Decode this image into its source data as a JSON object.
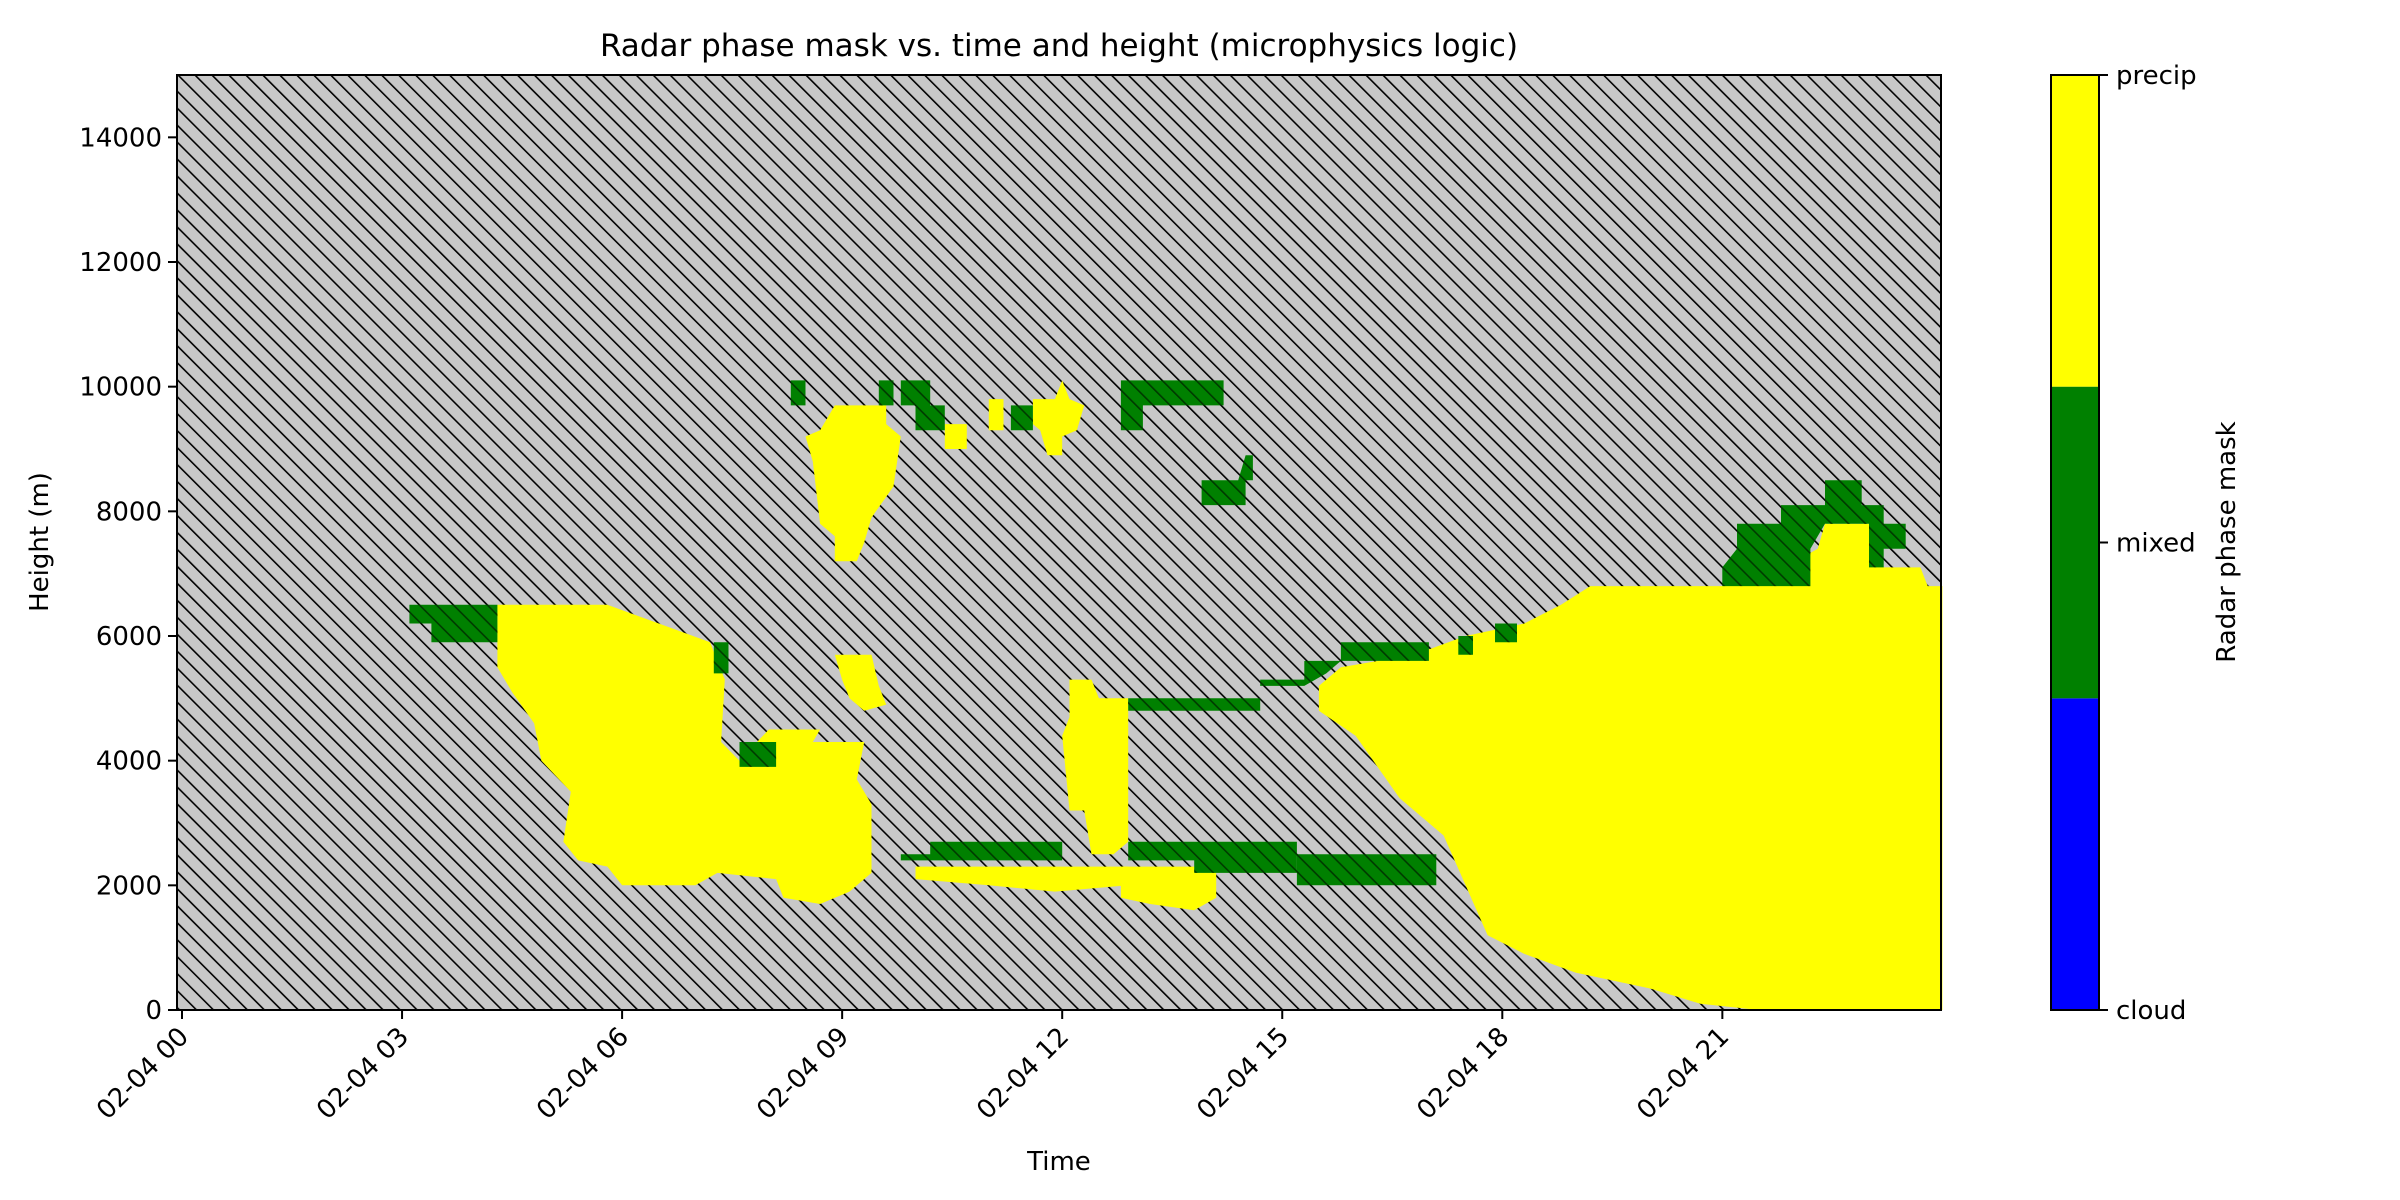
{
  "chart_data": {
    "type": "heatmap",
    "title": "Radar phase mask vs. time and height (microphysics logic)",
    "xlabel": "Time",
    "ylabel": "Height (m)",
    "x_range": [
      "02-04 00:00",
      "02-04 23:59"
    ],
    "x_ticks": [
      "02-04 00",
      "02-04 03",
      "02-04 06",
      "02-04 09",
      "02-04 12",
      "02-04 15",
      "02-04 18",
      "02-04 21"
    ],
    "ylim": [
      0,
      15000
    ],
    "y_ticks": [
      0,
      2000,
      4000,
      6000,
      8000,
      10000,
      12000,
      14000
    ],
    "background": "no data (hatched)",
    "colorbar": {
      "label": "Radar phase mask",
      "categories": [
        {
          "name": "cloud",
          "color": "#0000ff"
        },
        {
          "name": "mixed",
          "color": "#008000"
        },
        {
          "name": "precip",
          "color": "#ffff00"
        }
      ]
    },
    "regions": [
      {
        "category": "precip",
        "description": "main precipitation body 04:20-09:40",
        "polygon": [
          [
            4.3,
            6500
          ],
          [
            5.8,
            6500
          ],
          [
            6.5,
            6200
          ],
          [
            7.2,
            5900
          ],
          [
            7.4,
            5300
          ],
          [
            7.35,
            4300
          ],
          [
            7.6,
            4000
          ],
          [
            8.0,
            4500
          ],
          [
            8.7,
            4500
          ],
          [
            8.6,
            4300
          ],
          [
            9.3,
            4300
          ],
          [
            9.2,
            3700
          ],
          [
            9.4,
            3300
          ],
          [
            9.4,
            2200
          ],
          [
            9.1,
            1900
          ],
          [
            8.7,
            1700
          ],
          [
            8.2,
            1800
          ],
          [
            8.1,
            2100
          ],
          [
            7.3,
            2200
          ],
          [
            7.0,
            2000
          ],
          [
            6.0,
            2000
          ],
          [
            5.8,
            2300
          ],
          [
            5.4,
            2400
          ],
          [
            5.2,
            2700
          ],
          [
            5.3,
            3500
          ],
          [
            4.9,
            4000
          ],
          [
            4.8,
            4600
          ],
          [
            4.5,
            5100
          ],
          [
            4.3,
            5500
          ]
        ]
      },
      {
        "category": "precip",
        "description": "upper precipitation cell near 09:00",
        "polygon": [
          [
            8.9,
            9700
          ],
          [
            9.6,
            9700
          ],
          [
            9.6,
            9400
          ],
          [
            9.8,
            9200
          ],
          [
            9.7,
            8400
          ],
          [
            9.4,
            7900
          ],
          [
            9.3,
            7500
          ],
          [
            9.2,
            7200
          ],
          [
            8.9,
            7200
          ],
          [
            8.9,
            7600
          ],
          [
            8.7,
            7800
          ],
          [
            8.6,
            8800
          ],
          [
            8.5,
            9200
          ],
          [
            8.7,
            9300
          ]
        ]
      },
      {
        "category": "precip",
        "description": "small cell near 09:15",
        "polygon": [
          [
            8.9,
            5700
          ],
          [
            9.4,
            5700
          ],
          [
            9.5,
            5200
          ],
          [
            9.6,
            4900
          ],
          [
            9.3,
            4800
          ],
          [
            9.1,
            5000
          ],
          [
            9.0,
            5300
          ]
        ]
      },
      {
        "category": "precip",
        "description": "upper cells near 10:30-12:00",
        "polygon": [
          [
            10.4,
            9400
          ],
          [
            10.7,
            9400
          ],
          [
            10.7,
            9000
          ],
          [
            10.4,
            9000
          ]
        ]
      },
      {
        "category": "precip",
        "description": "upper cells near 11:00",
        "polygon": [
          [
            11.0,
            9800
          ],
          [
            11.2,
            9800
          ],
          [
            11.2,
            9300
          ],
          [
            11.0,
            9300
          ]
        ]
      },
      {
        "category": "precip",
        "description": "upper cells near 11:45",
        "polygon": [
          [
            11.6,
            9800
          ],
          [
            11.9,
            9800
          ],
          [
            12.0,
            10100
          ],
          [
            12.1,
            9800
          ],
          [
            12.3,
            9700
          ],
          [
            12.2,
            9300
          ],
          [
            12.0,
            9200
          ],
          [
            12.0,
            8900
          ],
          [
            11.8,
            8900
          ],
          [
            11.7,
            9300
          ],
          [
            11.6,
            9400
          ]
        ]
      },
      {
        "category": "precip",
        "description": "low band 09:50-12:50",
        "polygon": [
          [
            10.0,
            2300
          ],
          [
            12.9,
            2300
          ],
          [
            12.9,
            2000
          ],
          [
            11.9,
            1900
          ],
          [
            11.0,
            2000
          ],
          [
            10.0,
            2100
          ]
        ]
      },
      {
        "category": "precip",
        "description": "column near 12:20",
        "polygon": [
          [
            12.1,
            5300
          ],
          [
            12.4,
            5300
          ],
          [
            12.5,
            5000
          ],
          [
            12.9,
            5000
          ],
          [
            12.9,
            2700
          ],
          [
            12.7,
            2500
          ],
          [
            12.4,
            2500
          ],
          [
            12.3,
            3200
          ],
          [
            12.1,
            3200
          ],
          [
            12.0,
            4400
          ],
          [
            12.1,
            4700
          ]
        ]
      },
      {
        "category": "precip",
        "description": "low patch near 13:30",
        "polygon": [
          [
            12.8,
            2300
          ],
          [
            14.1,
            2300
          ],
          [
            14.1,
            1800
          ],
          [
            13.8,
            1600
          ],
          [
            13.2,
            1700
          ],
          [
            12.8,
            1800
          ]
        ]
      },
      {
        "category": "precip",
        "description": "major precipitation body 15:30-24:00",
        "polygon": [
          [
            15.5,
            4800
          ],
          [
            16.0,
            4400
          ],
          [
            16.6,
            3400
          ],
          [
            17.2,
            2800
          ],
          [
            17.5,
            2000
          ],
          [
            17.8,
            1200
          ],
          [
            18.3,
            900
          ],
          [
            19.0,
            600
          ],
          [
            20.0,
            350
          ],
          [
            20.7,
            100
          ],
          [
            21.5,
            0
          ],
          [
            24.0,
            0
          ],
          [
            24.0,
            6800
          ],
          [
            23.8,
            6800
          ],
          [
            23.7,
            7100
          ],
          [
            23.2,
            7100
          ],
          [
            23.0,
            7800
          ],
          [
            22.4,
            7800
          ],
          [
            22.3,
            7400
          ],
          [
            21.7,
            7000
          ],
          [
            21.0,
            6800
          ],
          [
            19.2,
            6800
          ],
          [
            18.8,
            6500
          ],
          [
            18.3,
            6200
          ],
          [
            17.5,
            6000
          ],
          [
            16.8,
            5700
          ],
          [
            15.8,
            5500
          ],
          [
            15.5,
            5200
          ]
        ]
      },
      {
        "category": "mixed",
        "description": "shelf near 03:30",
        "polygon": [
          [
            3.1,
            6500
          ],
          [
            4.3,
            6500
          ],
          [
            4.3,
            5900
          ],
          [
            3.4,
            5900
          ],
          [
            3.4,
            6200
          ],
          [
            3.1,
            6200
          ]
        ]
      },
      {
        "category": "mixed",
        "description": "spot near 07:30",
        "polygon": [
          [
            7.25,
            5900
          ],
          [
            7.45,
            5900
          ],
          [
            7.45,
            5400
          ],
          [
            7.25,
            5400
          ]
        ]
      },
      {
        "category": "mixed",
        "description": "spot near 07:45",
        "polygon": [
          [
            7.6,
            4300
          ],
          [
            8.1,
            4300
          ],
          [
            8.1,
            3900
          ],
          [
            7.6,
            3900
          ]
        ]
      },
      {
        "category": "mixed",
        "description": "upper spots 08:20-10:40",
        "polygon": [
          [
            8.3,
            10100
          ],
          [
            8.5,
            10100
          ],
          [
            8.5,
            9700
          ],
          [
            8.3,
            9700
          ]
        ]
      },
      {
        "category": "mixed",
        "description": "upper spot near 09:45",
        "polygon": [
          [
            9.5,
            10100
          ],
          [
            9.7,
            10100
          ],
          [
            9.7,
            9700
          ],
          [
            9.5,
            9700
          ]
        ]
      },
      {
        "category": "mixed",
        "description": "upper spot near 10:00",
        "polygon": [
          [
            9.8,
            10100
          ],
          [
            10.2,
            10100
          ],
          [
            10.2,
            9700
          ],
          [
            10.4,
            9700
          ],
          [
            10.4,
            9300
          ],
          [
            10.0,
            9300
          ],
          [
            10.0,
            9700
          ],
          [
            9.8,
            9700
          ]
        ]
      },
      {
        "category": "mixed",
        "description": "upper spot near 11:20",
        "polygon": [
          [
            11.3,
            9700
          ],
          [
            11.6,
            9700
          ],
          [
            11.6,
            9300
          ],
          [
            11.3,
            9300
          ]
        ]
      },
      {
        "category": "mixed",
        "description": "upper band 12:50-14:10",
        "polygon": [
          [
            12.8,
            10100
          ],
          [
            14.2,
            10100
          ],
          [
            14.2,
            9700
          ],
          [
            13.1,
            9700
          ],
          [
            13.1,
            9300
          ],
          [
            12.8,
            9300
          ]
        ]
      },
      {
        "category": "mixed",
        "description": "spot near 14:20",
        "polygon": [
          [
            14.5,
            8900
          ],
          [
            14.6,
            8900
          ],
          [
            14.6,
            8500
          ],
          [
            14.5,
            8500
          ],
          [
            14.5,
            8100
          ],
          [
            13.9,
            8100
          ],
          [
            13.9,
            8500
          ],
          [
            14.4,
            8500
          ]
        ]
      },
      {
        "category": "mixed",
        "description": "low band 09:50-12:30",
        "polygon": [
          [
            10.2,
            2700
          ],
          [
            12.0,
            2700
          ],
          [
            12.0,
            2400
          ],
          [
            9.8,
            2400
          ],
          [
            9.8,
            2500
          ],
          [
            10.2,
            2500
          ]
        ]
      },
      {
        "category": "mixed",
        "description": "low band 12:50-15:20",
        "polygon": [
          [
            12.9,
            2700
          ],
          [
            15.2,
            2700
          ],
          [
            15.2,
            2200
          ],
          [
            13.8,
            2200
          ],
          [
            13.8,
            2400
          ],
          [
            12.9,
            2400
          ]
        ]
      },
      {
        "category": "mixed",
        "description": "low band 15:20-17:00",
        "polygon": [
          [
            15.2,
            2500
          ],
          [
            17.1,
            2500
          ],
          [
            17.1,
            2000
          ],
          [
            15.2,
            2000
          ]
        ]
      },
      {
        "category": "mixed",
        "description": "top band 12:50-15:00",
        "polygon": [
          [
            12.9,
            5000
          ],
          [
            14.7,
            5000
          ],
          [
            14.7,
            4800
          ],
          [
            12.9,
            4800
          ]
        ]
      },
      {
        "category": "mixed",
        "description": "top band 14:40-17:00",
        "polygon": [
          [
            14.7,
            5300
          ],
          [
            15.3,
            5300
          ],
          [
            15.3,
            5600
          ],
          [
            15.8,
            5600
          ],
          [
            15.8,
            5900
          ],
          [
            17.0,
            5900
          ],
          [
            17.0,
            5600
          ],
          [
            15.8,
            5600
          ],
          [
            15.6,
            5400
          ],
          [
            15.3,
            5200
          ],
          [
            14.7,
            5200
          ]
        ]
      },
      {
        "category": "mixed",
        "description": "top spots near 17:30",
        "polygon": [
          [
            17.4,
            6000
          ],
          [
            17.6,
            6000
          ],
          [
            17.6,
            5700
          ],
          [
            17.4,
            5700
          ]
        ]
      },
      {
        "category": "mixed",
        "description": "top spots near 18:00",
        "polygon": [
          [
            17.9,
            6200
          ],
          [
            18.2,
            6200
          ],
          [
            18.2,
            5900
          ],
          [
            17.9,
            5900
          ]
        ]
      },
      {
        "category": "mixed",
        "description": "cap near 21:00",
        "polygon": [
          [
            21.2,
            7800
          ],
          [
            21.8,
            7800
          ],
          [
            21.8,
            8100
          ],
          [
            22.4,
            8100
          ],
          [
            22.4,
            8500
          ],
          [
            22.9,
            8500
          ],
          [
            22.9,
            8100
          ],
          [
            23.2,
            8100
          ],
          [
            23.2,
            7800
          ],
          [
            23.5,
            7800
          ],
          [
            23.5,
            7400
          ],
          [
            23.2,
            7400
          ],
          [
            23.2,
            7100
          ],
          [
            23.0,
            7100
          ],
          [
            23.0,
            7800
          ],
          [
            22.4,
            7800
          ],
          [
            22.2,
            7400
          ],
          [
            22.2,
            6800
          ],
          [
            21.0,
            6800
          ],
          [
            21.0,
            7100
          ],
          [
            21.2,
            7400
          ]
        ]
      }
    ]
  }
}
